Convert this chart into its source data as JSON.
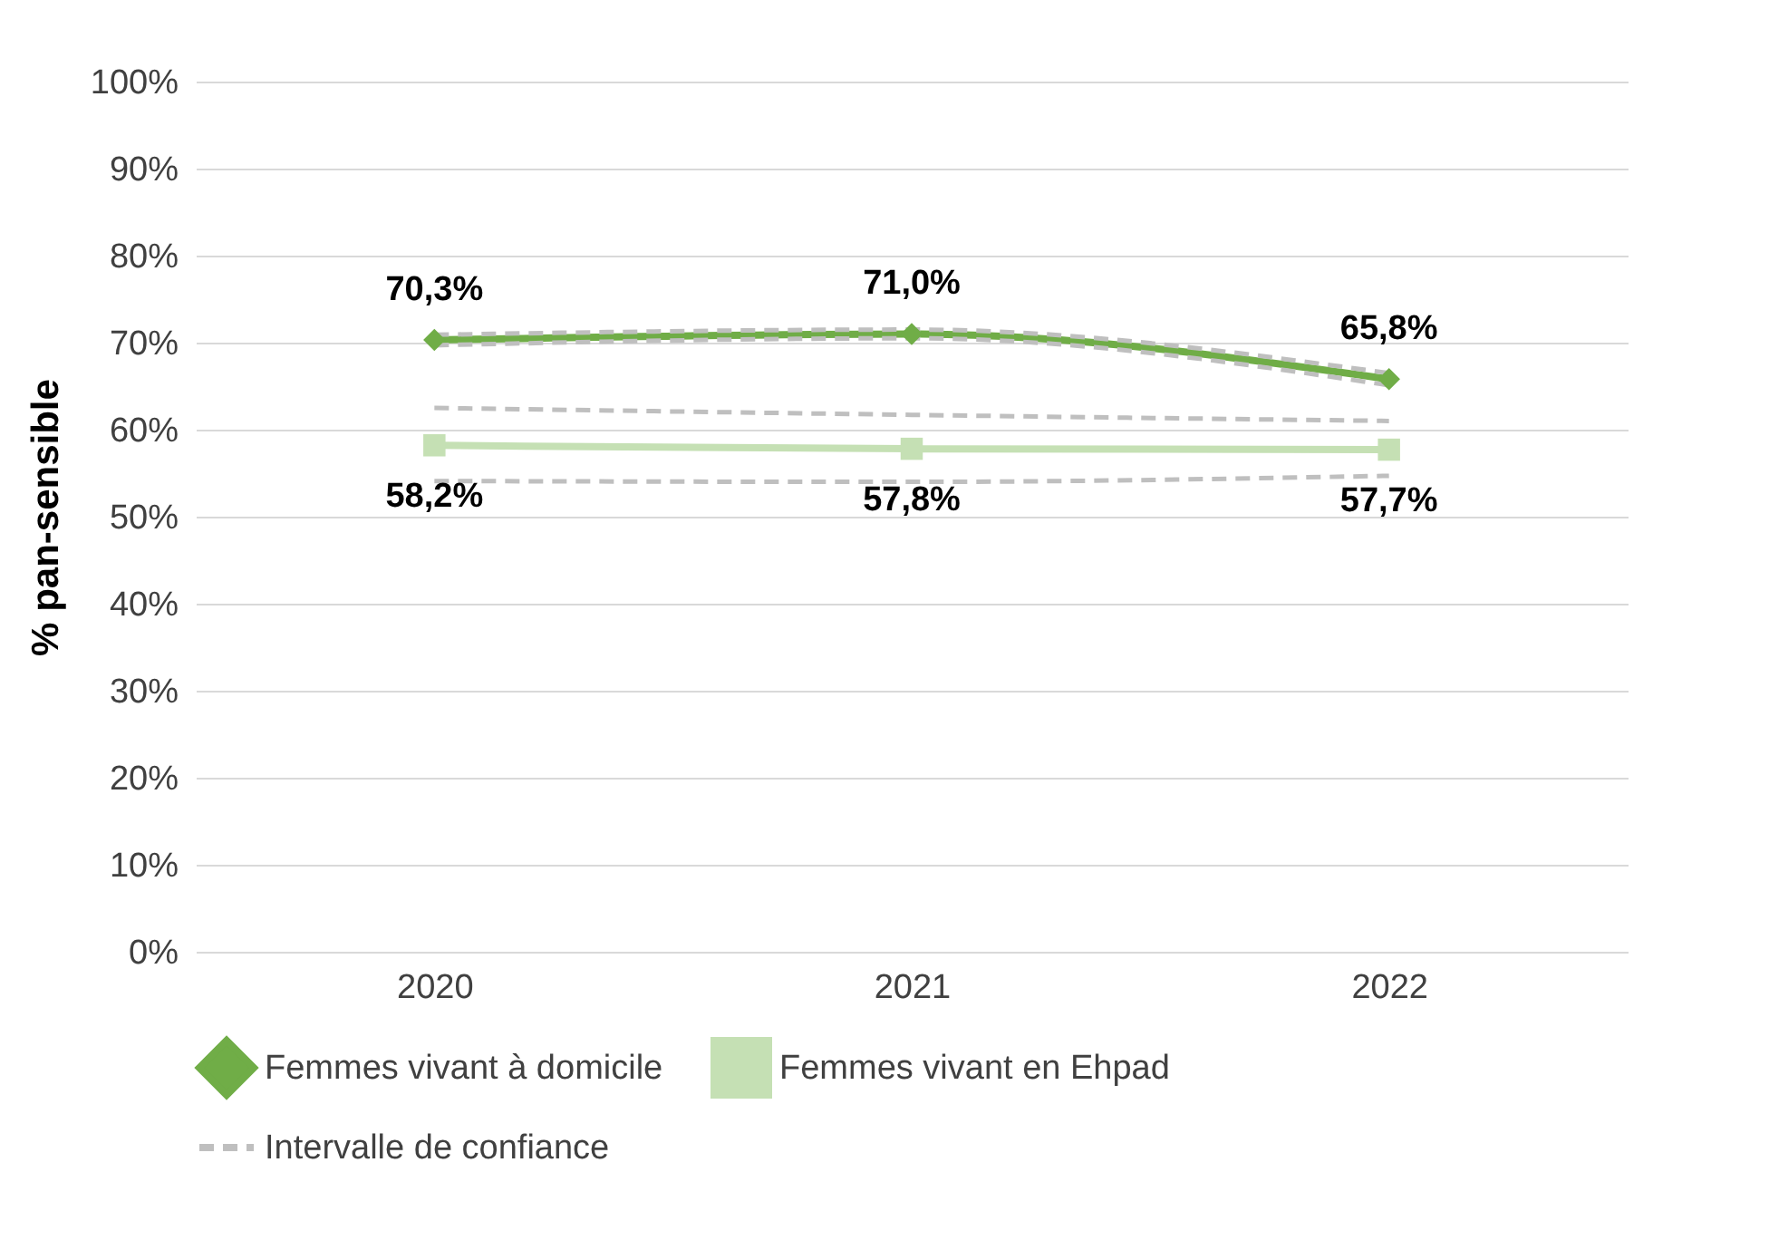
{
  "chart_data": {
    "type": "line",
    "ylabel": "% pan-sensible",
    "categories": [
      "2020",
      "2021",
      "2022"
    ],
    "ylim": [
      0,
      100
    ],
    "yticks": [
      {
        "value": 0,
        "label": "0%"
      },
      {
        "value": 10,
        "label": "10%"
      },
      {
        "value": 20,
        "label": "20%"
      },
      {
        "value": 30,
        "label": "30%"
      },
      {
        "value": 40,
        "label": "40%"
      },
      {
        "value": 50,
        "label": "50%"
      },
      {
        "value": 60,
        "label": "60%"
      },
      {
        "value": 70,
        "label": "70%"
      },
      {
        "value": 80,
        "label": "80%"
      },
      {
        "value": 90,
        "label": "90%"
      },
      {
        "value": 100,
        "label": "100%"
      }
    ],
    "grid": "y",
    "legend": "bottom",
    "series": [
      {
        "name": "Femmes vivant à domicile",
        "color": "#70ad47",
        "values": [
          70.3,
          71.0,
          65.8
        ],
        "value_labels": [
          "70,3%",
          "71,0%",
          "65,8%"
        ],
        "marker": "diamond",
        "line_style": "solid"
      },
      {
        "name": "Femmes vivant en Ehpad",
        "color": "#c5e0b4",
        "values": [
          58.2,
          57.8,
          57.7
        ],
        "value_labels": [
          "58,2%",
          "57,8%",
          "57,7%"
        ],
        "marker": "square",
        "line_style": "solid"
      },
      {
        "name": "Intervalle de confiance",
        "color": "#bfbfbf",
        "values": [
          70.9,
          71.5,
          66.5
        ],
        "marker": "none",
        "line_style": "dashed"
      },
      {
        "color": "#bfbfbf",
        "values": [
          69.7,
          70.5,
          65.1
        ],
        "marker": "none",
        "line_style": "dashed"
      },
      {
        "color": "#bfbfbf",
        "values": [
          62.5,
          61.7,
          61.0
        ],
        "marker": "none",
        "line_style": "dashed"
      },
      {
        "color": "#bfbfbf",
        "values": [
          54.1,
          54.0,
          54.7
        ],
        "marker": "none",
        "line_style": "dashed"
      }
    ]
  }
}
